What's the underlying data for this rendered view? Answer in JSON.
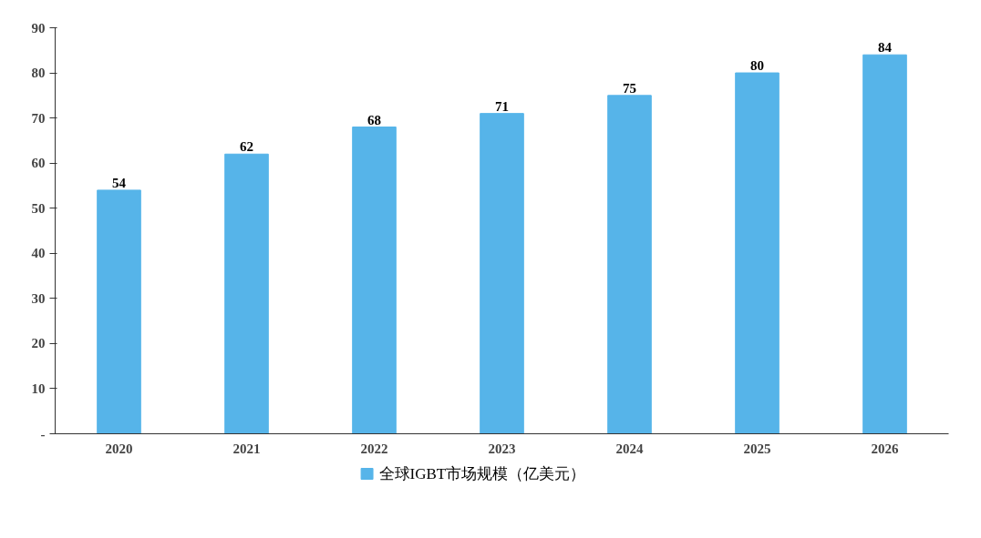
{
  "chart_data": {
    "type": "bar",
    "categories": [
      "2020",
      "2021",
      "2022",
      "2023",
      "2024",
      "2025",
      "2026"
    ],
    "series": [
      {
        "name": "全球IGBT市场规模（亿美元）",
        "color": "#56b4e9",
        "values": [
          54,
          62,
          68,
          71,
          75,
          80,
          84
        ]
      }
    ],
    "ylim": [
      0,
      90
    ],
    "yticks": [
      {
        "value": 0,
        "label": "-"
      },
      10,
      20,
      30,
      40,
      50,
      60,
      70,
      80,
      90
    ],
    "data_labels": true,
    "grid": false,
    "legend": "bottom"
  }
}
